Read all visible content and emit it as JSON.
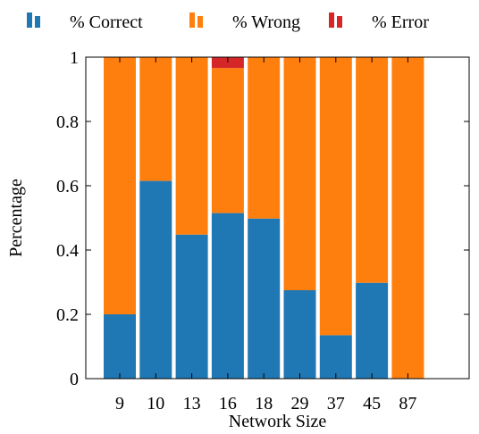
{
  "chart_data": {
    "type": "bar",
    "stacked": true,
    "categories": [
      "9",
      "10",
      "13",
      "16",
      "18",
      "29",
      "37",
      "45",
      "87"
    ],
    "series": [
      {
        "name": "% Correct",
        "color": "#1f77b4",
        "values": [
          0.2,
          0.615,
          0.448,
          0.515,
          0.498,
          0.275,
          0.135,
          0.298,
          0.0
        ]
      },
      {
        "name": "% Wrong",
        "color": "#ff7f0e",
        "values": [
          0.8,
          0.385,
          0.552,
          0.451,
          0.502,
          0.725,
          0.865,
          0.702,
          1.0
        ]
      },
      {
        "name": "% Error",
        "color": "#d62728",
        "values": [
          0.0,
          0.0,
          0.0,
          0.034,
          0.0,
          0.0,
          0.0,
          0.0,
          0.0
        ]
      }
    ],
    "xlabel": "Network Size",
    "ylabel": "Percentage",
    "ylim": [
      0,
      1
    ],
    "yticks": [
      0,
      0.2,
      0.4,
      0.6,
      0.8,
      1
    ],
    "ytick_labels": [
      "0",
      "0.2",
      "0.4",
      "0.6",
      "0.8",
      "1"
    ],
    "legend_position": "top",
    "grid": false
  }
}
